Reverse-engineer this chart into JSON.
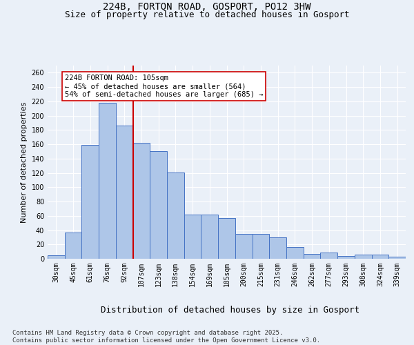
{
  "title_line1": "224B, FORTON ROAD, GOSPORT, PO12 3HW",
  "title_line2": "Size of property relative to detached houses in Gosport",
  "xlabel": "Distribution of detached houses by size in Gosport",
  "ylabel": "Number of detached properties",
  "categories": [
    "30sqm",
    "45sqm",
    "61sqm",
    "76sqm",
    "92sqm",
    "107sqm",
    "123sqm",
    "138sqm",
    "154sqm",
    "169sqm",
    "185sqm",
    "200sqm",
    "215sqm",
    "231sqm",
    "246sqm",
    "262sqm",
    "277sqm",
    "293sqm",
    "308sqm",
    "324sqm",
    "339sqm"
  ],
  "values": [
    5,
    37,
    159,
    218,
    186,
    162,
    150,
    121,
    62,
    62,
    57,
    35,
    35,
    30,
    16,
    7,
    9,
    4,
    6,
    6,
    3
  ],
  "bar_color": "#aec6e8",
  "bar_edge_color": "#4472c4",
  "vline_x_index": 4.5,
  "vline_color": "#cc0000",
  "annotation_text": "224B FORTON ROAD: 105sqm\n← 45% of detached houses are smaller (564)\n54% of semi-detached houses are larger (685) →",
  "annotation_box_color": "#ffffff",
  "annotation_box_edge_color": "#cc0000",
  "ylim": [
    0,
    270
  ],
  "yticks": [
    0,
    20,
    40,
    60,
    80,
    100,
    120,
    140,
    160,
    180,
    200,
    220,
    240,
    260
  ],
  "footnote": "Contains HM Land Registry data © Crown copyright and database right 2025.\nContains public sector information licensed under the Open Government Licence v3.0.",
  "background_color": "#eaf0f8",
  "plot_background_color": "#eaf0f8",
  "title_fontsize": 10,
  "subtitle_fontsize": 9,
  "axis_label_fontsize": 8,
  "ylabel_fontsize": 8,
  "tick_fontsize": 7,
  "annotation_fontsize": 7.5,
  "footnote_fontsize": 6.5
}
